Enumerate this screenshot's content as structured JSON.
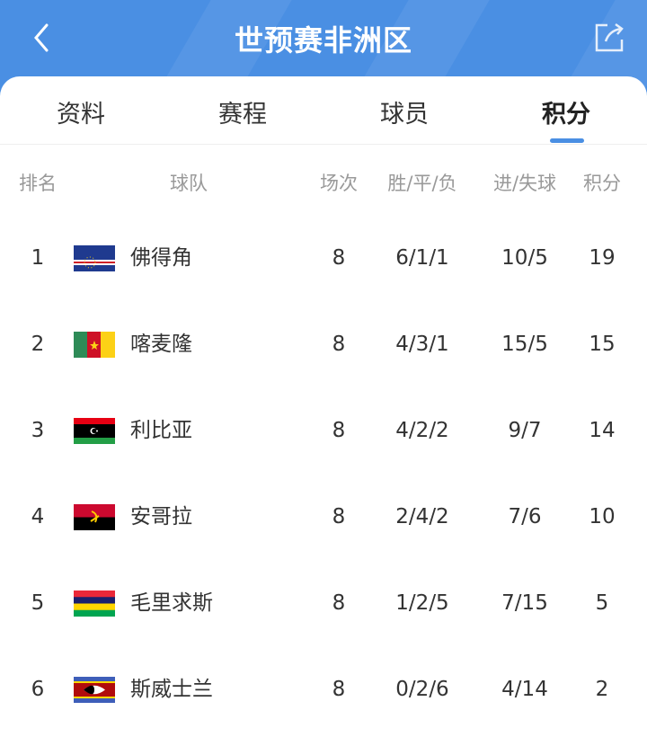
{
  "header": {
    "title": "世预赛非洲区",
    "back_icon": "chevron-left-icon",
    "share_icon": "share-icon",
    "color": "#4a8fe3"
  },
  "tabs": [
    {
      "label": "资料"
    },
    {
      "label": "赛程"
    },
    {
      "label": "球员"
    },
    {
      "label": "积分",
      "active": true
    }
  ],
  "columns": {
    "rank": "排名",
    "team": "球队",
    "played": "场次",
    "wdl": "胜/平/负",
    "goals": "进/失球",
    "points": "积分"
  },
  "rows": [
    {
      "rank": "1",
      "team": "佛得角",
      "flag": "cape-verde",
      "played": "8",
      "wdl": "6/1/1",
      "goals": "10/5",
      "points": "19"
    },
    {
      "rank": "2",
      "team": "喀麦隆",
      "flag": "cameroon",
      "played": "8",
      "wdl": "4/3/1",
      "goals": "15/5",
      "points": "15"
    },
    {
      "rank": "3",
      "team": "利比亚",
      "flag": "libya",
      "played": "8",
      "wdl": "4/2/2",
      "goals": "9/7",
      "points": "14"
    },
    {
      "rank": "4",
      "team": "安哥拉",
      "flag": "angola",
      "played": "8",
      "wdl": "2/4/2",
      "goals": "7/6",
      "points": "10"
    },
    {
      "rank": "5",
      "team": "毛里求斯",
      "flag": "mauritius",
      "played": "8",
      "wdl": "1/2/5",
      "goals": "7/15",
      "points": "5"
    },
    {
      "rank": "6",
      "team": "斯威士兰",
      "flag": "eswatini",
      "played": "8",
      "wdl": "0/2/6",
      "goals": "4/14",
      "points": "2"
    }
  ]
}
